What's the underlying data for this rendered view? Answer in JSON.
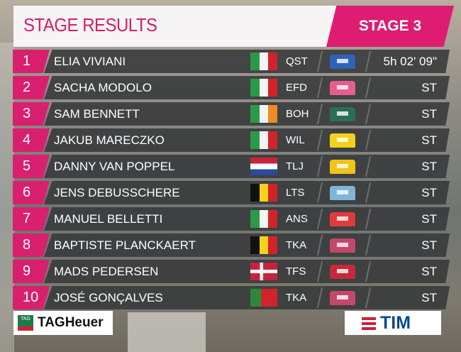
{
  "header": {
    "title": "STAGE RESULTS",
    "stage": "STAGE 3"
  },
  "rows": [
    {
      "pos": "1",
      "name": "ELIA VIVIANI",
      "flag": "italy",
      "team": "QST",
      "jersey_color": "#2f63b8",
      "time": "5h 02' 09\""
    },
    {
      "pos": "2",
      "name": "SACHA MODOLO",
      "flag": "italy",
      "team": "EFD",
      "jersey_color": "#e85c8f",
      "time": "ST"
    },
    {
      "pos": "3",
      "name": "SAM BENNETT",
      "flag": "ireland",
      "team": "BOH",
      "jersey_color": "#2a6d5a",
      "time": "ST"
    },
    {
      "pos": "4",
      "name": "JAKUB MARECZKO",
      "flag": "italy",
      "team": "WIL",
      "jersey_color": "#f2d21b",
      "time": "ST"
    },
    {
      "pos": "5",
      "name": "DANNY VAN POPPEL",
      "flag": "netherlands",
      "team": "TLJ",
      "jersey_color": "#f0c419",
      "time": "ST"
    },
    {
      "pos": "6",
      "name": "JENS DEBUSSCHERE",
      "flag": "belgium",
      "team": "LTS",
      "jersey_color": "#7fb6d8",
      "time": "ST"
    },
    {
      "pos": "7",
      "name": "MANUEL BELLETTI",
      "flag": "italy",
      "team": "ANS",
      "jersey_color": "#e03a3a",
      "time": "ST"
    },
    {
      "pos": "8",
      "name": "BAPTISTE PLANCKAERT",
      "flag": "belgium",
      "team": "TKA",
      "jersey_color": "#c4486a",
      "time": "ST"
    },
    {
      "pos": "9",
      "name": "MADS PEDERSEN",
      "flag": "denmark",
      "team": "TFS",
      "jersey_color": "#c8283a",
      "time": "ST"
    },
    {
      "pos": "10",
      "name": "JOSÉ GONÇALVES",
      "flag": "portugal",
      "team": "TKA",
      "jersey_color": "#c4486a",
      "time": "ST"
    }
  ],
  "sponsors": {
    "left": "TAGHeuer",
    "left_badge": "TAG",
    "right": "TIM"
  },
  "colors": {
    "accent": "#de1c72"
  }
}
